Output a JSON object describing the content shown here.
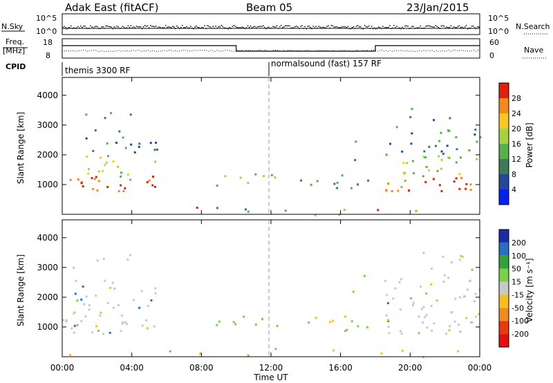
{
  "header": {
    "station": "Adak East (fitACF)",
    "beam": "Beam 05",
    "date": "23/Jan/2015"
  },
  "top_panels": {
    "nsky_label": "N.Sky",
    "nsearch_label": "N.Search",
    "nsky_ticks": [
      "10^5",
      "10^0"
    ],
    "nsearch_ticks": [
      "10^5",
      "10^0"
    ],
    "freq_label_1": "Freq.",
    "freq_label_2": "[MHz]",
    "freq_ticks": [
      "18",
      "8"
    ],
    "nave_ticks": [
      "60",
      "0"
    ],
    "nave_label": "Nave",
    "cpid_label": "CPID",
    "cpid_segments": [
      {
        "name": "themis 3300 RF",
        "start_hour": 0
      },
      {
        "name": "normalsound (fast) 157 RF",
        "start_hour": 12
      }
    ]
  },
  "chart_data": [
    {
      "type": "heatmap",
      "quantity": "Power",
      "ylabel": "Slant Range [km]",
      "ylim": [
        0,
        4600
      ],
      "yticks": [
        1000,
        2000,
        3000,
        4000
      ],
      "xlabel": "Time UT",
      "xlim_hours": [
        0,
        24
      ],
      "colorbar_label": "Power [dB]",
      "colorbar_ticks": [
        "4",
        "8",
        "12",
        "16",
        "20",
        "24",
        "28"
      ],
      "colorbar_colors": [
        "#0022ee",
        "#23479a",
        "#3d7a55",
        "#57b04b",
        "#a9cf42",
        "#f5c823",
        "#f28a1e",
        "#e01f10"
      ]
    },
    {
      "type": "heatmap",
      "quantity": "Velocity",
      "ylabel": "Slant Range [km]",
      "ylim": [
        0,
        4600
      ],
      "yticks": [
        1000,
        2000,
        3000,
        4000
      ],
      "xlabel": "Time UT",
      "xlim_hours": [
        0,
        24
      ],
      "colorbar_label": "Velocity [m s⁻¹]",
      "colorbar_ticks": [
        "200",
        "100",
        "50",
        "15",
        "-15",
        "-50",
        "-100",
        "-200"
      ],
      "colorbar_colors": [
        "#1a2aa8",
        "#2a6fbf",
        "#36a03a",
        "#7ad04a",
        "#c8c8c8",
        "#f3c020",
        "#f08b20",
        "#e83a10",
        "#e01010"
      ]
    }
  ],
  "x_axis": {
    "tick_labels": [
      "00:00",
      "04:00",
      "08:00",
      "12:00",
      "16:00",
      "20:00",
      "00:00"
    ],
    "xlabel": "Time UT"
  }
}
